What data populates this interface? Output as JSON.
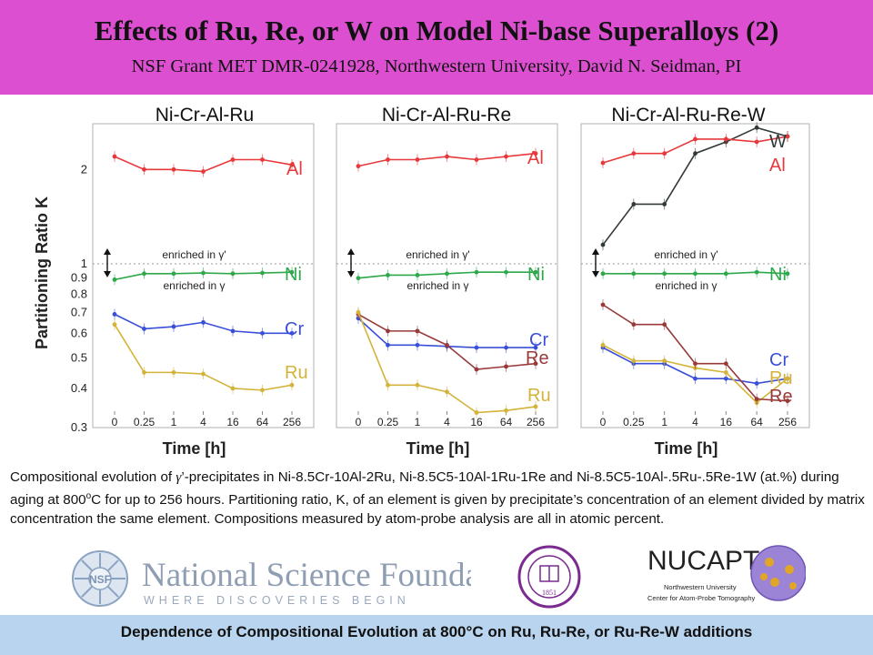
{
  "header": {
    "title": "Effects of Ru, Re, or W on Model Ni-base Superalloys (2)",
    "subtitle": "NSF Grant MET DMR-0241928, Northwestern University, David N. Seidman, PI",
    "bg_color": "#dd4fd1"
  },
  "chart_data": [
    {
      "type": "line",
      "title": "Ni-Cr-Al-Ru",
      "xlabel": "Time [h]",
      "ylabel": "Partitioning Ratio K",
      "x_ticks": [
        "0",
        "0.25",
        "1",
        "4",
        "16",
        "64",
        "256"
      ],
      "y_scale": "log",
      "y_ticks": [
        "0.3",
        "0.4",
        "0.5",
        "0.6",
        "0.7",
        "0.8",
        "0.9",
        "1",
        "2"
      ],
      "ylim": [
        0.3,
        2.8
      ],
      "annotations": [
        "enriched in γ'",
        "enriched in γ"
      ],
      "series": [
        {
          "name": "Al",
          "color": "#e8383b",
          "x": [
            0,
            0.25,
            1,
            4,
            16,
            64,
            256
          ],
          "values": [
            2.2,
            2.0,
            2.0,
            1.97,
            2.15,
            2.15,
            2.07
          ]
        },
        {
          "name": "Ni",
          "color": "#2ea84a",
          "x": [
            0,
            0.25,
            1,
            4,
            16,
            64,
            256
          ],
          "values": [
            0.89,
            0.93,
            0.93,
            0.935,
            0.93,
            0.935,
            0.94
          ]
        },
        {
          "name": "Cr",
          "color": "#3a4fd8",
          "x": [
            0,
            0.25,
            1,
            4,
            16,
            64,
            256
          ],
          "values": [
            0.69,
            0.62,
            0.63,
            0.65,
            0.61,
            0.6,
            0.6
          ]
        },
        {
          "name": "Ru",
          "color": "#d4b33a",
          "x": [
            0,
            0.25,
            1,
            4,
            16,
            64,
            256
          ],
          "values": [
            0.64,
            0.45,
            0.45,
            0.445,
            0.4,
            0.395,
            0.41
          ]
        }
      ]
    },
    {
      "type": "line",
      "title": "Ni-Cr-Al-Ru-Re",
      "xlabel": "Time [h]",
      "x_ticks": [
        "0",
        "0.25",
        "1",
        "4",
        "16",
        "64",
        "256"
      ],
      "y_scale": "log",
      "ylim": [
        0.3,
        2.8
      ],
      "annotations": [
        "enriched in γ'",
        "enriched in γ"
      ],
      "series": [
        {
          "name": "Al",
          "color": "#e8383b",
          "x": [
            0,
            0.25,
            1,
            4,
            16,
            64,
            256
          ],
          "values": [
            2.05,
            2.15,
            2.15,
            2.2,
            2.15,
            2.2,
            2.25
          ]
        },
        {
          "name": "Ni",
          "color": "#2ea84a",
          "x": [
            0,
            0.25,
            1,
            4,
            16,
            64,
            256
          ],
          "values": [
            0.9,
            0.92,
            0.92,
            0.93,
            0.94,
            0.94,
            0.94
          ]
        },
        {
          "name": "Cr",
          "color": "#3a4fd8",
          "x": [
            0,
            0.25,
            1,
            4,
            16,
            64,
            256
          ],
          "values": [
            0.67,
            0.55,
            0.55,
            0.545,
            0.54,
            0.54,
            0.54
          ]
        },
        {
          "name": "Re",
          "color": "#983a3a",
          "x": [
            0,
            0.25,
            1,
            4,
            16,
            64,
            256
          ],
          "values": [
            0.69,
            0.61,
            0.61,
            0.55,
            0.46,
            0.47,
            0.48
          ]
        },
        {
          "name": "Ru",
          "color": "#d4b33a",
          "x": [
            0,
            0.25,
            1,
            4,
            16,
            64,
            256
          ],
          "values": [
            0.7,
            0.41,
            0.41,
            0.39,
            0.335,
            0.34,
            0.35
          ]
        }
      ]
    },
    {
      "type": "line",
      "title": "Ni-Cr-Al-Ru-Re-W",
      "xlabel": "Time [h]",
      "x_ticks": [
        "0",
        "0.25",
        "1",
        "4",
        "16",
        "64",
        "256"
      ],
      "y_scale": "log",
      "ylim": [
        0.3,
        2.8
      ],
      "annotations": [
        "enriched in γ'",
        "enriched in γ"
      ],
      "series": [
        {
          "name": "W",
          "color": "#333b38",
          "x": [
            0,
            0.25,
            1,
            4,
            16,
            64,
            256
          ],
          "values": [
            1.15,
            1.55,
            1.55,
            2.25,
            2.45,
            2.72,
            2.55
          ]
        },
        {
          "name": "Al",
          "color": "#e8383b",
          "x": [
            0,
            0.25,
            1,
            4,
            16,
            64,
            256
          ],
          "values": [
            2.1,
            2.25,
            2.25,
            2.5,
            2.5,
            2.45,
            2.55
          ]
        },
        {
          "name": "Ni",
          "color": "#2ea84a",
          "x": [
            0,
            0.25,
            1,
            4,
            16,
            64,
            256
          ],
          "values": [
            0.93,
            0.93,
            0.93,
            0.93,
            0.93,
            0.94,
            0.93
          ]
        },
        {
          "name": "Cr",
          "color": "#3a4fd8",
          "x": [
            0,
            0.25,
            1,
            4,
            16,
            64,
            256
          ],
          "values": [
            0.54,
            0.48,
            0.48,
            0.43,
            0.43,
            0.415,
            0.43
          ]
        },
        {
          "name": "Ru",
          "color": "#d4b33a",
          "x": [
            0,
            0.25,
            1,
            4,
            16,
            64,
            256
          ],
          "values": [
            0.55,
            0.49,
            0.49,
            0.465,
            0.45,
            0.36,
            0.43
          ]
        },
        {
          "name": "Re",
          "color": "#983a3a",
          "x": [
            0,
            0.25,
            1,
            4,
            16,
            64,
            256
          ],
          "values": [
            0.74,
            0.64,
            0.64,
            0.48,
            0.48,
            0.37,
            0.365
          ]
        }
      ]
    }
  ],
  "caption": {
    "line1_a": "Compositional evolution of ",
    "gamma": "γ",
    "line1_b": "’-precipitates in Ni-8.5Cr-10Al-2Ru, Ni-8.5C5-10Al-1Ru-1Re and Ni-8.5C5-10Al-.5Ru-.5Re-1W (at.%) during aging at 800",
    "deg_o": "o",
    "line1_c": "C for up to 256 hours. Partitioning ratio, K, of an element is given by precipitate’s concentration of an element divided by matrix concentration the same element. Compositions measured by atom-probe analysis are all in atomic percent."
  },
  "logos": {
    "nsf_seal": "NSF",
    "nsf_name": "National Science Foundation",
    "nsf_tagline": "WHERE DISCOVERIES BEGIN",
    "nu_seal_year": "1851",
    "nucapt_name": "NUCAPT",
    "nucapt_line1": "Northwestern University",
    "nucapt_line2": "Center for Atom-Probe Tomography"
  },
  "footer": {
    "text": "Dependence of Compositional Evolution at 800°C on Ru, Ru-Re, or Ru-Re-W additions",
    "bg_color": "#b8d4ee"
  }
}
